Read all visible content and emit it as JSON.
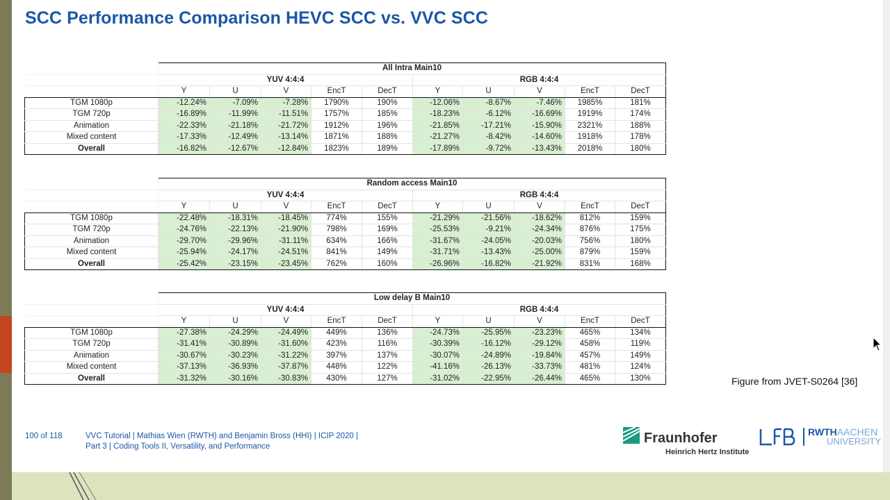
{
  "title": "SCC Performance Comparison HEVC SCC vs. VVC SCC",
  "caption": "Figure from JVET-S0264 [36]",
  "tables": [
    {
      "config": "All Intra Main10",
      "group_left": "YUV 4:4:4",
      "group_right": "RGB 4:4:4",
      "columns": [
        "Y",
        "U",
        "V",
        "EncT",
        "DecT",
        "Y",
        "U",
        "V",
        "EncT",
        "DecT"
      ],
      "rows": [
        {
          "label": "TGM 1080p",
          "values": [
            "-12.24%",
            "-7.09%",
            "-7.28%",
            "1790%",
            "190%",
            "-12.06%",
            "-8.67%",
            "-7.46%",
            "1985%",
            "181%"
          ]
        },
        {
          "label": "TGM 720p",
          "values": [
            "-16.89%",
            "-11.99%",
            "-11.51%",
            "1757%",
            "185%",
            "-18.23%",
            "-6.12%",
            "-16.69%",
            "1919%",
            "174%"
          ]
        },
        {
          "label": "Animation",
          "values": [
            "-22.33%",
            "-21.18%",
            "-21.72%",
            "1912%",
            "196%",
            "-21.85%",
            "-17.21%",
            "-15.90%",
            "2321%",
            "188%"
          ]
        },
        {
          "label": "Mixed content",
          "values": [
            "-17.33%",
            "-12.49%",
            "-13.14%",
            "1871%",
            "188%",
            "-21.27%",
            "-8.42%",
            "-14.60%",
            "1918%",
            "178%"
          ]
        },
        {
          "label": "Overall",
          "values": [
            "-16.82%",
            "-12.67%",
            "-12.84%",
            "1823%",
            "189%",
            "-17.89%",
            "-9.72%",
            "-13.43%",
            "2018%",
            "180%"
          ]
        }
      ]
    },
    {
      "config": "Random access Main10",
      "group_left": "YUV 4:4:4",
      "group_right": "RGB 4:4:4",
      "columns": [
        "Y",
        "U",
        "V",
        "EncT",
        "DecT",
        "Y",
        "U",
        "V",
        "EncT",
        "DecT"
      ],
      "rows": [
        {
          "label": "TGM 1080p",
          "values": [
            "-22.48%",
            "-18.31%",
            "-18.45%",
            "774%",
            "155%",
            "-21.29%",
            "-21.56%",
            "-18.62%",
            "812%",
            "159%"
          ]
        },
        {
          "label": "TGM 720p",
          "values": [
            "-24.76%",
            "-22.13%",
            "-21.90%",
            "798%",
            "169%",
            "-25.53%",
            "-9.21%",
            "-24.34%",
            "876%",
            "175%"
          ]
        },
        {
          "label": "Animation",
          "values": [
            "-29.70%",
            "-29.96%",
            "-31.11%",
            "634%",
            "166%",
            "-31.67%",
            "-24.05%",
            "-20.03%",
            "756%",
            "180%"
          ]
        },
        {
          "label": "Mixed content",
          "values": [
            "-25.94%",
            "-24.17%",
            "-24.51%",
            "841%",
            "149%",
            "-31.71%",
            "-13.43%",
            "-25.00%",
            "879%",
            "159%"
          ]
        },
        {
          "label": "Overall",
          "values": [
            "-25.42%",
            "-23.15%",
            "-23.45%",
            "762%",
            "160%",
            "-26.96%",
            "-16.82%",
            "-21.92%",
            "831%",
            "168%"
          ]
        }
      ]
    },
    {
      "config": "Low delay B Main10",
      "group_left": "YUV 4:4:4",
      "group_right": "RGB 4:4:4",
      "columns": [
        "Y",
        "U",
        "V",
        "EncT",
        "DecT",
        "Y",
        "U",
        "V",
        "EncT",
        "DecT"
      ],
      "rows": [
        {
          "label": "TGM 1080p",
          "values": [
            "-27.38%",
            "-24.29%",
            "-24.49%",
            "449%",
            "136%",
            "-24.73%",
            "-25.95%",
            "-23.23%",
            "465%",
            "134%"
          ]
        },
        {
          "label": "TGM 720p",
          "values": [
            "-31.41%",
            "-30.89%",
            "-31.60%",
            "423%",
            "116%",
            "-30.39%",
            "-16.12%",
            "-29.12%",
            "458%",
            "119%"
          ]
        },
        {
          "label": "Animation",
          "values": [
            "-30.67%",
            "-30.23%",
            "-31.22%",
            "397%",
            "137%",
            "-30.07%",
            "-24.89%",
            "-19.84%",
            "457%",
            "149%"
          ]
        },
        {
          "label": "Mixed content",
          "values": [
            "-37.13%",
            "-36.93%",
            "-37.87%",
            "448%",
            "122%",
            "-41.16%",
            "-26.13%",
            "-33.73%",
            "481%",
            "124%"
          ]
        },
        {
          "label": "Overall",
          "values": [
            "-31.32%",
            "-30.16%",
            "-30.83%",
            "430%",
            "127%",
            "-31.02%",
            "-22.95%",
            "-26.44%",
            "465%",
            "130%"
          ]
        }
      ]
    }
  ],
  "footer": {
    "page": "100 of 118",
    "line1": "VVC Tutorial  |  Mathias Wien (RWTH) and Benjamin Bross (HHI)  |  ICIP 2020  |",
    "line2": "Part 3  |  Coding Tools II, Versatility, and Performance"
  },
  "logos": {
    "fraunhofer": "Fraunhofer",
    "fraunhofer_sub": "Heinrich Hertz Institute",
    "lfb": "LfB",
    "rwth_bold": "RWTH",
    "rwth_light": "AACHEN",
    "rwth_university": "UNIVERSITY"
  },
  "colors": {
    "title": "#1a57a6",
    "green_cell": "#d9efd2",
    "accent_bar": "#c2451e",
    "side_bar": "#7d7a58"
  }
}
